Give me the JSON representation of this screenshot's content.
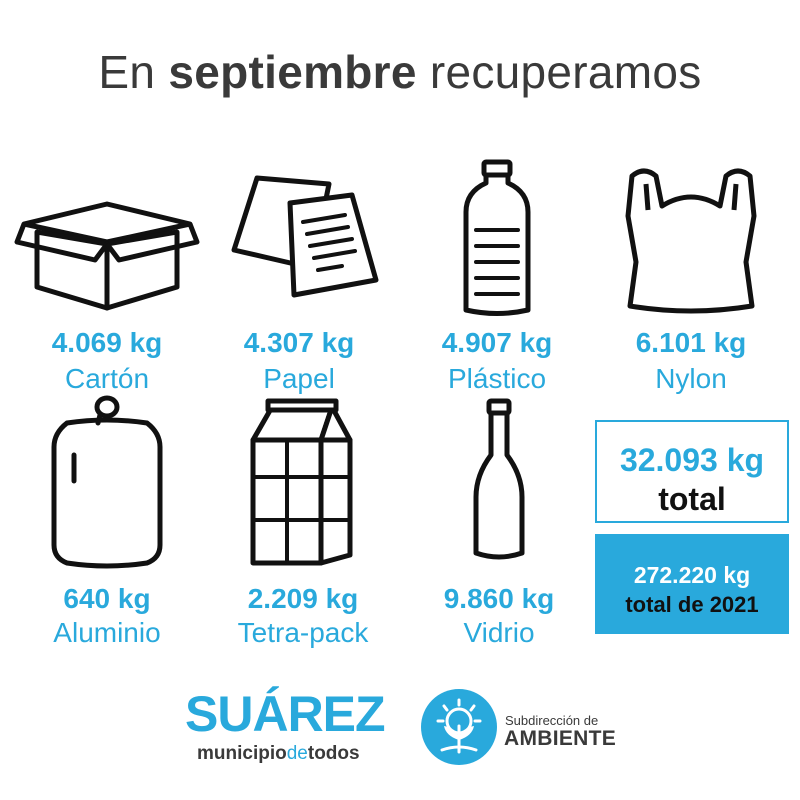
{
  "title": {
    "prefix": "En ",
    "bold": "septiembre",
    "suffix": " recuperamos"
  },
  "items": [
    {
      "amount": "4.069 kg",
      "label": "Cartón",
      "icon": "box-icon"
    },
    {
      "amount": "4.307 kg",
      "label": "Papel",
      "icon": "paper-icon"
    },
    {
      "amount": "4.907 kg",
      "label": "Plástico",
      "icon": "plastic-bottle-icon"
    },
    {
      "amount": "6.101 kg",
      "label": "Nylon",
      "icon": "bag-icon"
    },
    {
      "amount": "640 kg",
      "label": "Aluminio",
      "icon": "can-icon"
    },
    {
      "amount": "2.209 kg",
      "label": "Tetra-pack",
      "icon": "carton-icon"
    },
    {
      "amount": "9.860 kg",
      "label": "Vidrio",
      "icon": "glass-bottle-icon"
    }
  ],
  "total": {
    "value": "32.093 kg",
    "label": "total"
  },
  "year_total": {
    "value": "272.220 kg",
    "label": "total de 2021"
  },
  "logo": {
    "name": "SUÁREZ",
    "sub_a": "municipio",
    "sub_b": "de",
    "sub_c": "todos"
  },
  "ambiente": {
    "line1": "Subdirección de",
    "line2": "AMBIENTE"
  },
  "colors": {
    "accent": "#29a9dc",
    "text": "#3a3a3a"
  }
}
